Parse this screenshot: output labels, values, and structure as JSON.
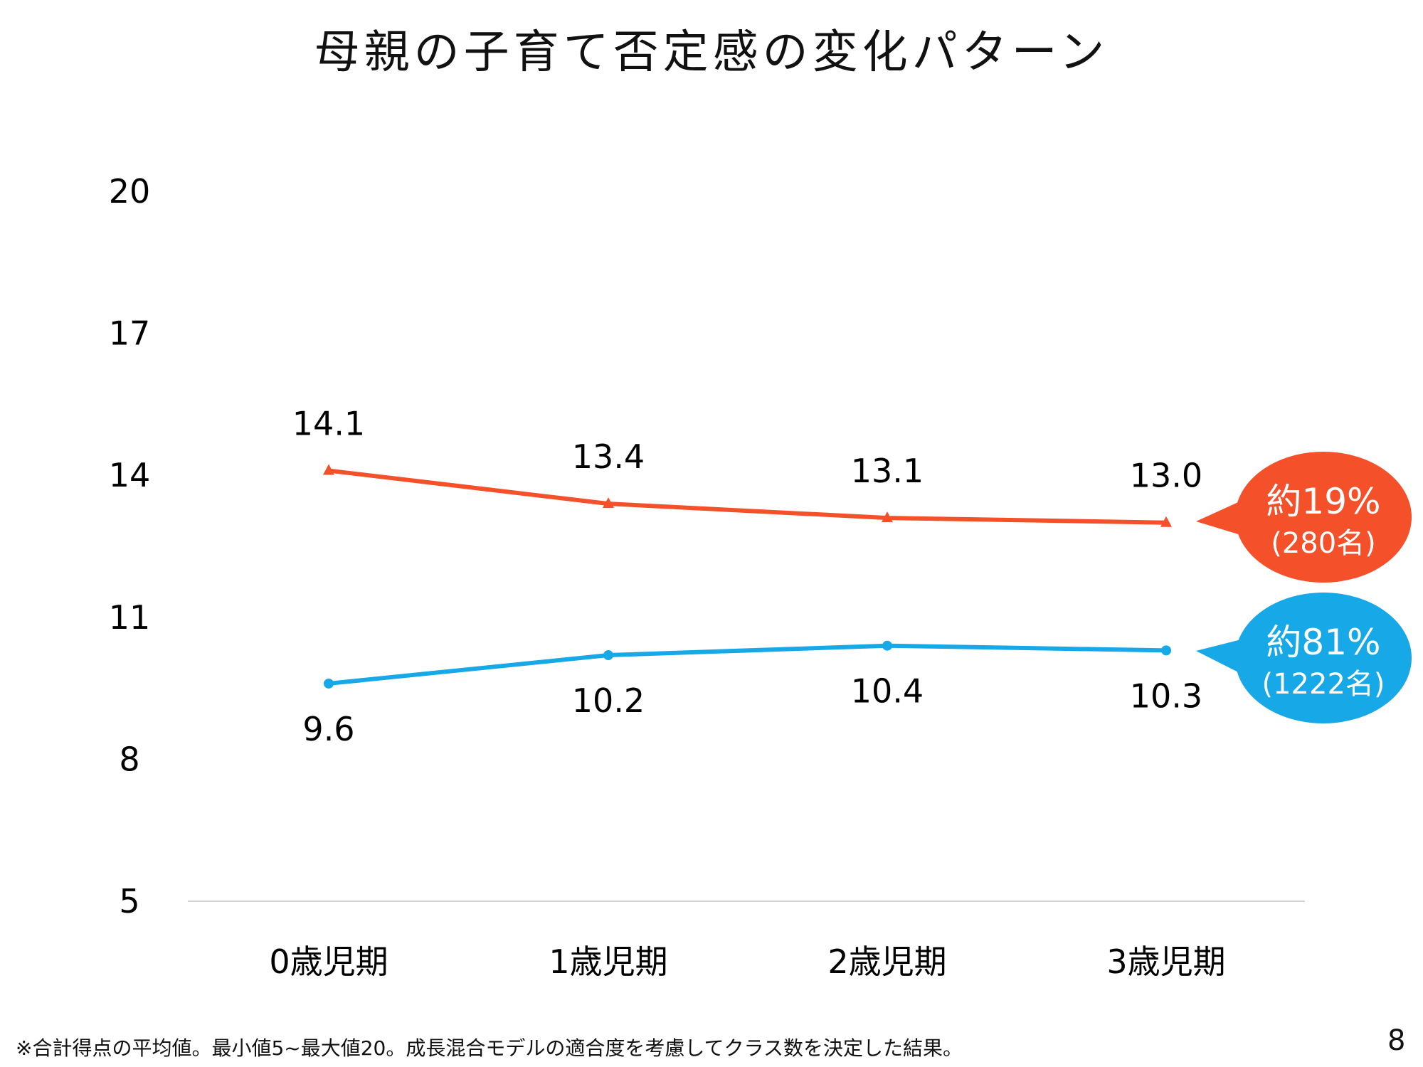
{
  "title": "母親の子育て否定感の変化パターン",
  "chart_data": {
    "type": "line",
    "title": "母親の子育て否定感の変化パターン",
    "categories": [
      "0歳児期",
      "1歳児期",
      "2歳児期",
      "3歳児期"
    ],
    "yticks": [
      20,
      17,
      14,
      11,
      8,
      5
    ],
    "ylim": [
      5,
      20
    ],
    "xlabel": "",
    "ylabel": "",
    "grid": false,
    "series": [
      {
        "name": "約19%（280名）",
        "label_pct": "約19%",
        "label_n": "(280名)",
        "color": "#F4502A",
        "marker": "triangle",
        "values": [
          14.1,
          13.4,
          13.1,
          13.0
        ],
        "value_labels": [
          "14.1",
          "13.4",
          "13.1",
          "13.0"
        ],
        "label_pos": "above"
      },
      {
        "name": "約81%（1222名）",
        "label_pct": "約81%",
        "label_n": "(1222名)",
        "color": "#17A8E8",
        "marker": "circle",
        "values": [
          9.6,
          10.2,
          10.4,
          10.3
        ],
        "value_labels": [
          "9.6",
          "10.2",
          "10.4",
          "10.3"
        ],
        "label_pos": "below"
      }
    ]
  },
  "footer": "※合計得点の平均値。最小値5~最大値20。成長混合モデルの適合度を考慮してクラス数を決定した結果。",
  "page_number": "8"
}
